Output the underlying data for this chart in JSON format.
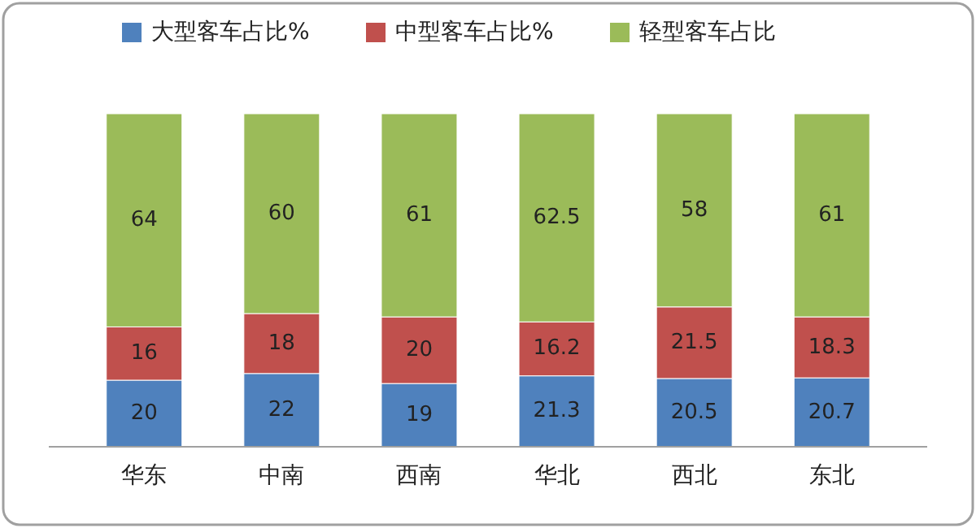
{
  "chart_data": {
    "type": "bar",
    "stacked": true,
    "data_labels": true,
    "legend": "top",
    "categories": [
      "华东",
      "中南",
      "西南",
      "华北",
      "西北",
      "东北"
    ],
    "series": [
      {
        "name": "大型客车占比%",
        "color": "#4f81bd",
        "values": [
          20,
          22,
          19,
          21.3,
          20.5,
          20.7
        ]
      },
      {
        "name": "中型客车占比%",
        "color": "#c0504d",
        "values": [
          16,
          18,
          20,
          16.2,
          21.5,
          18.3
        ]
      },
      {
        "name": "轻型客车占比",
        "color": "#9bbb59",
        "values": [
          64,
          60,
          61,
          62.5,
          58,
          61
        ]
      }
    ]
  }
}
